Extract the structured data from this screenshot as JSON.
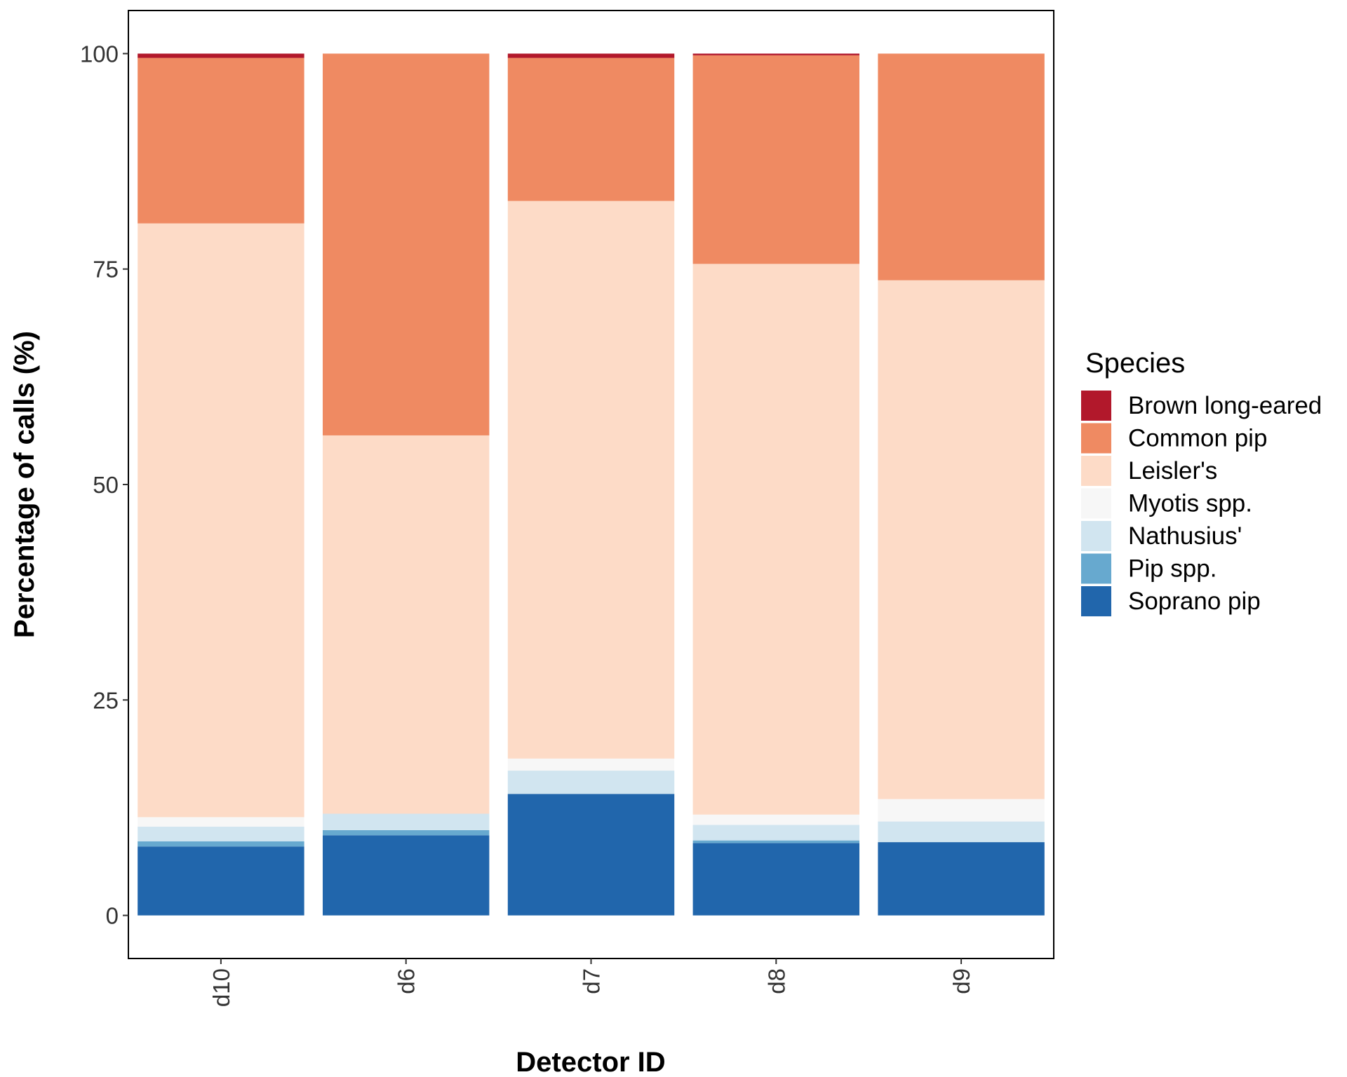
{
  "chart_data": {
    "type": "bar",
    "stacked": true,
    "xlabel": "Detector ID",
    "ylabel": "Percentage of calls (%)",
    "ylim": [
      -5,
      105
    ],
    "yticks": [
      0,
      25,
      50,
      75,
      100
    ],
    "grid": false,
    "legend": {
      "title": "Species",
      "placement": "right"
    },
    "categories": [
      "d10",
      "d6",
      "d7",
      "d8",
      "d9"
    ],
    "series": [
      {
        "name": "Soprano pip",
        "color": "#2166AC",
        "values": [
          8.0,
          9.3,
          14.1,
          8.4,
          8.5
        ]
      },
      {
        "name": "Pip spp.",
        "color": "#67A9CF",
        "values": [
          0.6,
          0.6,
          0.0,
          0.3,
          0.0
        ]
      },
      {
        "name": "Nathusius'",
        "color": "#D1E5F0",
        "values": [
          1.7,
          1.9,
          2.7,
          1.8,
          2.4
        ]
      },
      {
        "name": "Myotis spp.",
        "color": "#F7F7F7",
        "values": [
          1.1,
          0.0,
          1.4,
          1.2,
          2.6
        ]
      },
      {
        "name": "Leisler's",
        "color": "#FDDBC7",
        "values": [
          68.9,
          43.9,
          64.7,
          63.9,
          60.2
        ]
      },
      {
        "name": "Common pip",
        "color": "#EF8A62",
        "values": [
          19.2,
          44.3,
          16.6,
          24.2,
          26.3
        ]
      },
      {
        "name": "Brown long-eared",
        "color": "#B2182B",
        "values": [
          0.5,
          0.0,
          0.5,
          0.2,
          0.0
        ]
      }
    ],
    "legend_order": [
      "Brown long-eared",
      "Common pip",
      "Leisler's",
      "Myotis spp.",
      "Nathusius'",
      "Pip spp.",
      "Soprano pip"
    ]
  }
}
